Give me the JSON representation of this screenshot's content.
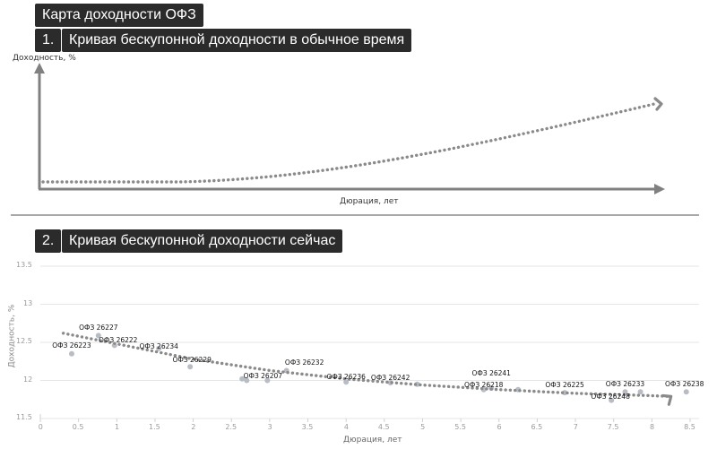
{
  "header": {
    "title": "Карта доходности ОФЗ"
  },
  "section1": {
    "number": "1.",
    "title": "Кривая бескупонной доходности в обычное время",
    "y_axis_label": "Доходность, %",
    "x_axis_label": "Дюрация, лет"
  },
  "section2": {
    "number": "2.",
    "title": "Кривая бескупонной доходности сейчас",
    "y_axis_label": "Доходность, %",
    "x_axis_label": "Дюрация, лет"
  },
  "colors": {
    "label_bg": "#2b2b2b",
    "arrow": "#808080",
    "dots": "#8a8a8a",
    "points": "#b8bcc4",
    "grid": "#e6e6e6"
  },
  "chart_data": [
    {
      "type": "line",
      "title": "Кривая бескупонной доходности в обычное время",
      "xlabel": "Дюрация, лет",
      "ylabel": "Доходность, %",
      "description": "Schematic upward-sloping yield curve (no numeric ticks)",
      "x": [
        0,
        1,
        2,
        3,
        4,
        5,
        6,
        7,
        8,
        9,
        10
      ],
      "values": [
        0.0,
        0.0,
        0.02,
        0.06,
        0.12,
        0.2,
        0.3,
        0.42,
        0.56,
        0.72,
        0.9
      ],
      "grid": false
    },
    {
      "type": "scatter",
      "title": "Кривая бескупонной доходности сейчас",
      "xlabel": "Дюрация, лет",
      "ylabel": "Доходность, %",
      "xlim": [
        0,
        8.5
      ],
      "ylim": [
        11.5,
        13.5
      ],
      "x_ticks": [
        "0",
        "0.5",
        "1",
        "1.5",
        "2",
        "2.5",
        "3",
        "3.5",
        "4",
        "4.5",
        "5",
        "5.5",
        "6",
        "6.5",
        "7",
        "7.5",
        "8",
        "8.5"
      ],
      "y_ticks": [
        "11.5",
        "12",
        "12.5",
        "13",
        "13.5"
      ],
      "grid": true,
      "series": [
        {
          "name": "ОФЗ",
          "points": [
            {
              "label": "ОФЗ 26223",
              "x": 0.41,
              "y": 12.35
            },
            {
              "label": "ОФЗ 26227",
              "x": 0.76,
              "y": 12.59
            },
            {
              "label": "ОФЗ 26222",
              "x": 0.97,
              "y": 12.46
            },
            {
              "label": "ОФЗ 26234",
              "x": 1.55,
              "y": 12.42
            },
            {
              "label": "ОФЗ 26229",
              "x": 1.96,
              "y": 12.18
            },
            {
              "label": "",
              "x": 2.64,
              "y": 12.02
            },
            {
              "label": "",
              "x": 2.7,
              "y": 12.0
            },
            {
              "label": "ОФЗ 26207",
              "x": 2.97,
              "y": 12.0
            },
            {
              "label": "ОФЗ 26232",
              "x": 3.22,
              "y": 12.13
            },
            {
              "label": "ОФЗ 26236",
              "x": 4.0,
              "y": 11.98
            },
            {
              "label": "ОФЗ 26242",
              "x": 4.58,
              "y": 11.97
            },
            {
              "label": "",
              "x": 4.93,
              "y": 11.95
            },
            {
              "label": "ОФЗ 26218",
              "x": 5.8,
              "y": 11.88
            },
            {
              "label": "ОФЗ 26241",
              "x": 5.9,
              "y": 11.9
            },
            {
              "label": "",
              "x": 6.25,
              "y": 11.88
            },
            {
              "label": "ОФЗ 26225",
              "x": 6.86,
              "y": 11.84
            },
            {
              "label": "ОФЗ 26248",
              "x": 7.47,
              "y": 11.74
            },
            {
              "label": "ОФЗ 26233",
              "x": 7.65,
              "y": 11.85
            },
            {
              "label": "",
              "x": 7.85,
              "y": 11.85
            },
            {
              "label": "ОФЗ 26238",
              "x": 8.45,
              "y": 11.85
            }
          ]
        },
        {
          "name": "trend",
          "type": "line",
          "x": [
            0.3,
            1,
            2,
            3,
            4,
            5,
            6,
            7,
            8,
            8.25
          ],
          "values": [
            12.62,
            12.48,
            12.28,
            12.13,
            12.02,
            11.94,
            11.88,
            11.83,
            11.8,
            11.79
          ]
        }
      ]
    }
  ]
}
